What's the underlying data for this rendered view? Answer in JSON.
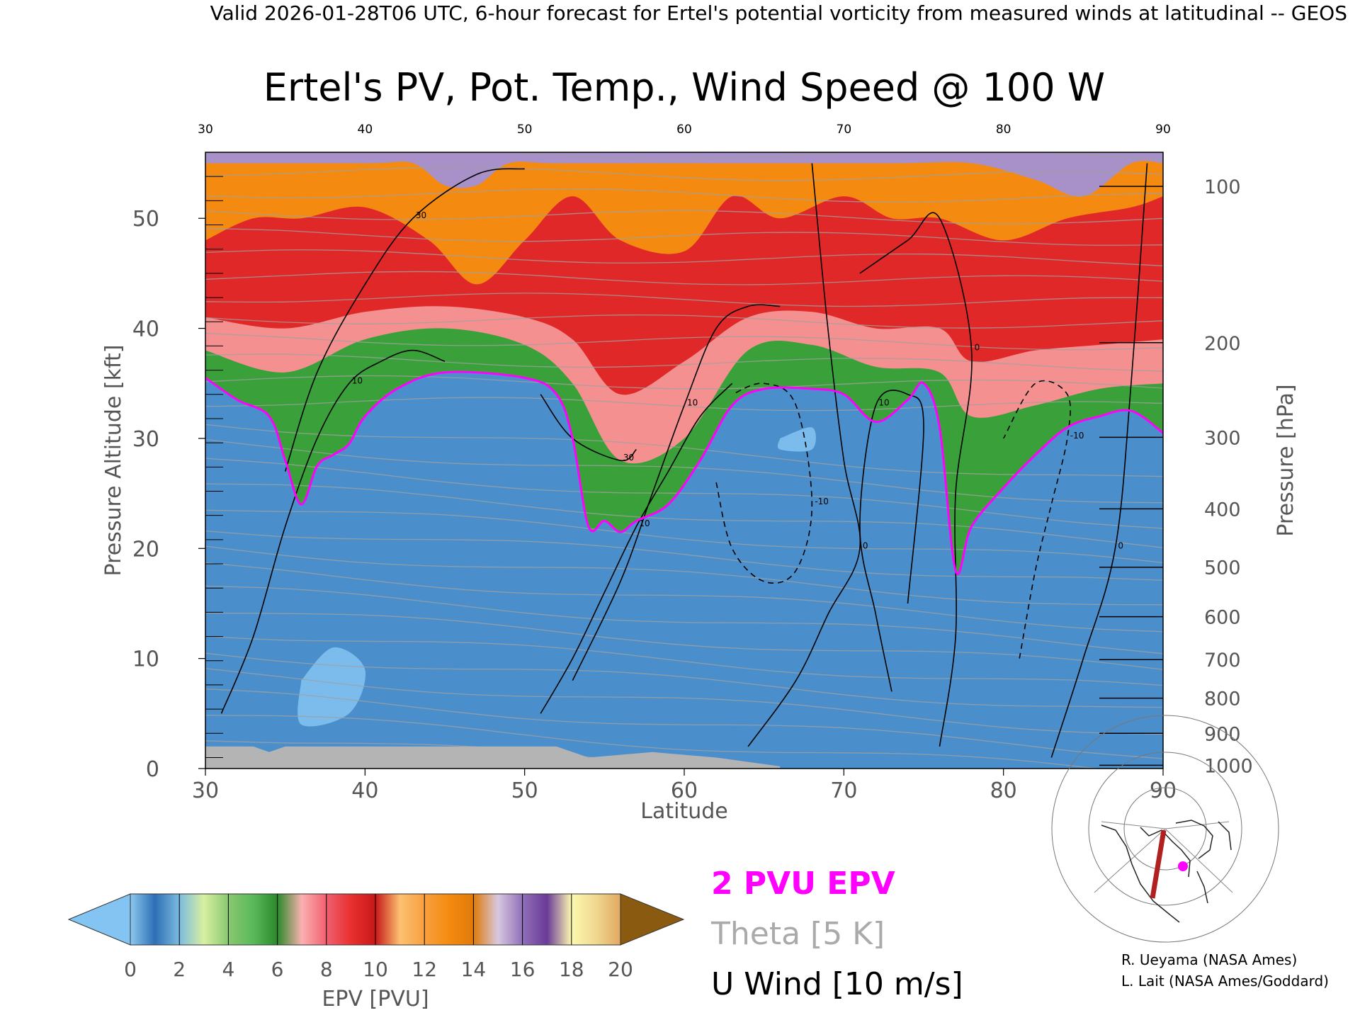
{
  "header": {
    "line": "Valid 2026-01-28T06 UTC, 6-hour forecast for Ertel's potential vorticity from measured winds at latitudinal -- GEOS"
  },
  "chart_data": {
    "type": "heatmap",
    "title": "Ertel's PV, Pot. Temp., Wind Speed @ 100 W",
    "xlabel": "Latitude",
    "ylabel": "Pressure Altitude [kft]",
    "y2label": "Pressure [hPa]",
    "xlim": [
      30,
      90
    ],
    "ylim": [
      0,
      56
    ],
    "x_ticks": [
      "30",
      "40",
      "50",
      "60",
      "70",
      "80",
      "90"
    ],
    "y_ticks": [
      "0",
      "10",
      "20",
      "30",
      "40",
      "50"
    ],
    "pressure_ticks": [
      {
        "label": "100",
        "kft": 52.9
      },
      {
        "label": "200",
        "kft": 38.7
      },
      {
        "label": "300",
        "kft": 30.1
      },
      {
        "label": "400",
        "kft": 23.6
      },
      {
        "label": "500",
        "kft": 18.3
      },
      {
        "label": "600",
        "kft": 13.8
      },
      {
        "label": "700",
        "kft": 9.9
      },
      {
        "label": "800",
        "kft": 6.4
      },
      {
        "label": "900",
        "kft": 3.2
      },
      {
        "label": "1000",
        "kft": 0.3
      }
    ],
    "tropopause_2pvu_kft": [
      [
        30,
        35.5
      ],
      [
        32,
        33.5
      ],
      [
        34,
        32
      ],
      [
        35,
        28
      ],
      [
        36,
        24
      ],
      [
        37,
        27.5
      ],
      [
        38,
        28.5
      ],
      [
        39,
        29.5
      ],
      [
        40,
        32
      ],
      [
        42,
        34.5
      ],
      [
        45,
        36
      ],
      [
        50,
        35.5
      ],
      [
        52,
        34
      ],
      [
        53,
        30
      ],
      [
        54,
        22
      ],
      [
        55,
        22.5
      ],
      [
        56,
        21.5
      ],
      [
        57,
        22.5
      ],
      [
        59,
        24
      ],
      [
        61,
        28
      ],
      [
        63,
        33
      ],
      [
        65,
        34.5
      ],
      [
        68,
        34.5
      ],
      [
        70,
        34
      ],
      [
        72,
        31.5
      ],
      [
        74,
        33.5
      ],
      [
        75,
        35
      ],
      [
        76,
        31
      ],
      [
        77,
        18
      ],
      [
        78,
        22
      ],
      [
        80,
        25.5
      ],
      [
        82,
        28.5
      ],
      [
        84,
        31
      ],
      [
        86,
        32
      ],
      [
        88,
        32.5
      ],
      [
        90,
        30.5
      ]
    ],
    "pv_level_boundaries_kft": [
      [
        [
          30,
          38
        ],
        [
          35,
          36
        ],
        [
          40,
          39
        ],
        [
          45,
          40
        ],
        [
          50,
          38.5
        ],
        [
          53,
          35
        ],
        [
          56,
          28
        ],
        [
          60,
          30
        ],
        [
          64,
          38
        ],
        [
          68,
          38.5
        ],
        [
          72,
          36.5
        ],
        [
          76,
          36
        ],
        [
          78,
          32
        ],
        [
          82,
          33
        ],
        [
          86,
          34.5
        ],
        [
          90,
          35
        ]
      ],
      [
        [
          30,
          41
        ],
        [
          35,
          40
        ],
        [
          40,
          41.5
        ],
        [
          45,
          42
        ],
        [
          50,
          41
        ],
        [
          53,
          39
        ],
        [
          56,
          34
        ],
        [
          60,
          37
        ],
        [
          64,
          41
        ],
        [
          68,
          41.5
        ],
        [
          72,
          40
        ],
        [
          76,
          40
        ],
        [
          78,
          37
        ],
        [
          82,
          38
        ],
        [
          86,
          38.5
        ],
        [
          90,
          39
        ]
      ],
      [
        [
          30,
          48
        ],
        [
          33,
          50
        ],
        [
          36,
          50
        ],
        [
          40,
          51
        ],
        [
          44,
          48
        ],
        [
          47,
          44
        ],
        [
          50,
          48
        ],
        [
          53,
          52
        ],
        [
          56,
          48
        ],
        [
          60,
          47
        ],
        [
          63,
          52
        ],
        [
          66,
          50
        ],
        [
          70,
          52
        ],
        [
          73,
          50
        ],
        [
          76,
          50
        ],
        [
          80,
          48
        ],
        [
          84,
          50
        ],
        [
          88,
          51
        ],
        [
          90,
          52
        ]
      ],
      [
        [
          30,
          55
        ],
        [
          40,
          55
        ],
        [
          43,
          55
        ],
        [
          45,
          53
        ],
        [
          47,
          53
        ],
        [
          49,
          55
        ],
        [
          52,
          55
        ],
        [
          60,
          55
        ],
        [
          73,
          55
        ],
        [
          78,
          55
        ],
        [
          82,
          53.5
        ],
        [
          85,
          52
        ],
        [
          88,
          55
        ],
        [
          90,
          55
        ]
      ]
    ],
    "wind_contours": [
      {
        "label": "10",
        "dashed": false,
        "pts": [
          [
            31,
            5
          ],
          [
            33,
            12
          ],
          [
            35,
            22
          ],
          [
            37,
            30
          ],
          [
            39,
            35
          ],
          [
            41,
            37
          ],
          [
            43,
            38
          ],
          [
            45,
            37
          ]
        ]
      },
      {
        "label": "30",
        "dashed": false,
        "pts": [
          [
            35,
            27
          ],
          [
            37,
            36
          ],
          [
            40,
            44
          ],
          [
            43,
            50
          ],
          [
            47,
            54
          ],
          [
            50,
            54.5
          ]
        ]
      },
      {
        "label": "30",
        "dashed": false,
        "pts": [
          [
            51,
            34
          ],
          [
            53,
            30
          ],
          [
            56,
            28
          ],
          [
            57,
            29
          ]
        ]
      },
      {
        "label": "10",
        "dashed": false,
        "pts": [
          [
            51,
            5
          ],
          [
            53,
            10
          ],
          [
            55,
            16
          ],
          [
            57,
            22
          ],
          [
            59,
            27
          ],
          [
            61,
            32
          ],
          [
            63,
            35
          ]
        ]
      },
      {
        "label": "10",
        "dashed": false,
        "pts": [
          [
            53,
            8
          ],
          [
            56,
            17
          ],
          [
            58,
            25
          ],
          [
            60,
            33
          ],
          [
            62,
            40
          ],
          [
            64,
            42
          ],
          [
            66,
            42
          ]
        ]
      },
      {
        "label": "0",
        "dashed": false,
        "pts": [
          [
            64,
            2
          ],
          [
            67,
            8
          ],
          [
            69,
            14
          ],
          [
            71,
            20
          ],
          [
            70,
            28
          ],
          [
            69,
            40
          ],
          [
            68,
            55
          ]
        ]
      },
      {
        "label": "-10",
        "dashed": true,
        "pts": [
          [
            62,
            26
          ],
          [
            63,
            20
          ],
          [
            65,
            17
          ],
          [
            67,
            18
          ],
          [
            68,
            24
          ],
          [
            67,
            33
          ],
          [
            65,
            35
          ],
          [
            63,
            34
          ]
        ]
      },
      {
        "label": "10",
        "dashed": false,
        "pts": [
          [
            73,
            7
          ],
          [
            72,
            14
          ],
          [
            71,
            22
          ],
          [
            72,
            33
          ],
          [
            74,
            34
          ],
          [
            75,
            31
          ],
          [
            74,
            15
          ]
        ]
      },
      {
        "label": "0",
        "dashed": false,
        "pts": [
          [
            76,
            2
          ],
          [
            77,
            12
          ],
          [
            77,
            25
          ],
          [
            78,
            38
          ],
          [
            76,
            50
          ],
          [
            74,
            48
          ],
          [
            71,
            45
          ]
        ]
      },
      {
        "label": "-10",
        "dashed": true,
        "pts": [
          [
            81,
            10
          ],
          [
            82,
            18
          ],
          [
            83,
            24
          ],
          [
            84,
            30
          ],
          [
            84,
            34
          ],
          [
            82,
            35
          ],
          [
            80,
            30
          ]
        ]
      },
      {
        "label": "0",
        "dashed": false,
        "pts": [
          [
            83,
            1
          ],
          [
            85,
            10
          ],
          [
            87,
            20
          ],
          [
            88,
            35
          ],
          [
            89,
            55
          ]
        ]
      }
    ],
    "colorbar": {
      "label": "EPV [PVU]",
      "ticks": [
        "0",
        "2",
        "4",
        "6",
        "8",
        "10",
        "12",
        "14",
        "16",
        "18",
        "20"
      ],
      "bins": [
        {
          "from": 0,
          "to": 2,
          "color": "#3d7fc0"
        },
        {
          "from": 2,
          "to": 4,
          "color": "#a8d88c"
        },
        {
          "from": 4,
          "to": 6,
          "color": "#3aa03a"
        },
        {
          "from": 6,
          "to": 8,
          "color": "#f59090"
        },
        {
          "from": 8,
          "to": 10,
          "color": "#e02828"
        },
        {
          "from": 10,
          "to": 12,
          "color": "#f8a650"
        },
        {
          "from": 12,
          "to": 14,
          "color": "#f58a10"
        },
        {
          "from": 14,
          "to": 16,
          "color": "#a890c8"
        },
        {
          "from": 16,
          "to": 18,
          "color": "#e6d98a"
        },
        {
          "from": 18,
          "to": 20,
          "color": "#e8c870"
        }
      ],
      "under_color": "#84c4f2",
      "over_color": "#8a5a10"
    },
    "legend": [
      {
        "label": "2 PVU EPV",
        "color": "#ff00ff"
      },
      {
        "label": "Theta [5 K]",
        "color": "#aaaaaa"
      },
      {
        "label": "U Wind [10 m/s]",
        "color": "#000000"
      }
    ]
  },
  "credits": [
    "R. Ueyama (NASA Ames)",
    "L. Lait (NASA Ames/Goddard)"
  ],
  "colors": {
    "tropopause": "#ff00ff",
    "theta": "#a0a0a0",
    "terrain": "#b4b4b4",
    "track": "#b02020"
  }
}
